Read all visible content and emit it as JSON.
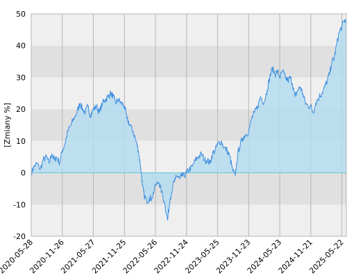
{
  "chart_data": {
    "type": "area",
    "title": "",
    "xlabel": "",
    "ylabel": "[Zmiany %]",
    "ylim": [
      -20,
      50
    ],
    "x_range": [
      "2020-05-28",
      "2025-06-17"
    ],
    "y_ticks": [
      -20,
      -10,
      0,
      10,
      20,
      30,
      40,
      50
    ],
    "y_tick_labels": [
      "-20",
      "-10",
      "0",
      "10",
      "20",
      "30",
      "40",
      "50"
    ],
    "x_ticks": [
      "2020-05-28",
      "2020-11-26",
      "2021-05-27",
      "2021-11-25",
      "2022-05-26",
      "2022-11-24",
      "2023-05-25",
      "2023-11-23",
      "2024-05-23",
      "2024-11-21",
      "2025-05-22"
    ],
    "grid": true,
    "legend": "none",
    "colors": {
      "line": "#3f8fe0",
      "fill": "#b5dcee",
      "band_light": "#efefef",
      "band_dark": "#e0e0e0",
      "grid": "#b4b4b4",
      "zero_line": "#5bc6d6"
    },
    "series": [
      {
        "x": [
          "2020-05-28",
          "2020-06-15",
          "2020-07-01",
          "2020-07-20",
          "2020-08-05",
          "2020-08-25",
          "2020-09-10",
          "2020-09-25",
          "2020-10-10",
          "2020-10-25",
          "2020-11-10",
          "2020-11-26",
          "2020-12-10",
          "2020-12-28",
          "2021-01-15",
          "2021-02-01",
          "2021-02-20",
          "2021-03-10",
          "2021-03-25",
          "2021-04-10",
          "2021-04-25",
          "2021-05-10",
          "2021-05-27",
          "2021-06-15",
          "2021-07-01",
          "2021-07-20",
          "2021-08-05",
          "2021-08-20",
          "2021-09-05",
          "2021-09-20",
          "2021-10-05",
          "2021-10-20",
          "2021-11-05",
          "2021-11-25",
          "2021-12-10",
          "2021-12-28",
          "2022-01-15",
          "2022-02-01",
          "2022-02-15",
          "2022-02-28",
          "2022-03-10",
          "2022-03-20",
          "2022-04-05",
          "2022-04-20",
          "2022-05-05",
          "2022-05-26",
          "2022-06-15",
          "2022-07-01",
          "2022-07-20",
          "2022-08-05",
          "2022-08-20",
          "2022-09-05",
          "2022-09-20",
          "2022-10-05",
          "2022-10-15",
          "2022-10-25",
          "2022-11-10",
          "2022-11-24",
          "2022-12-10",
          "2022-12-28",
          "2023-01-15",
          "2023-02-01",
          "2023-02-20",
          "2023-03-10",
          "2023-03-25",
          "2023-04-10",
          "2023-04-25",
          "2023-05-10",
          "2023-05-25",
          "2023-06-15",
          "2023-07-01",
          "2023-07-20",
          "2023-08-05",
          "2023-08-20",
          "2023-09-05",
          "2023-09-20",
          "2023-10-05",
          "2023-10-20",
          "2023-11-05",
          "2023-11-23",
          "2023-12-10",
          "2023-12-28",
          "2024-01-15",
          "2024-02-01",
          "2024-02-20",
          "2024-03-10",
          "2024-03-25",
          "2024-04-10",
          "2024-04-25",
          "2024-05-10",
          "2024-05-23",
          "2024-06-10",
          "2024-06-25",
          "2024-07-10",
          "2024-07-25",
          "2024-08-05",
          "2024-08-20",
          "2024-09-05",
          "2024-09-20",
          "2024-10-05",
          "2024-10-20",
          "2024-11-05",
          "2024-11-21",
          "2024-12-05",
          "2024-12-20",
          "2025-01-10",
          "2025-01-25",
          "2025-02-10",
          "2025-02-25",
          "2025-03-10",
          "2025-03-25",
          "2025-04-07",
          "2025-04-20",
          "2025-05-05",
          "2025-05-22",
          "2025-06-05",
          "2025-06-17"
        ],
        "y": [
          0,
          2,
          3,
          1,
          4,
          5,
          3,
          6,
          4,
          5,
          3,
          7,
          9,
          13,
          15,
          17,
          19,
          22,
          20,
          19,
          21,
          18,
          20,
          21,
          19,
          22,
          23,
          24,
          25,
          24,
          22,
          23,
          22,
          21,
          17,
          15,
          13,
          10,
          7,
          2,
          -4,
          -7,
          -9,
          -8,
          -8,
          -4,
          -3,
          -6,
          -10,
          -15,
          -8,
          -4,
          -2,
          -1,
          -2,
          -1,
          -1,
          0,
          1,
          2,
          4,
          5,
          6,
          4,
          4,
          3,
          6,
          7,
          9,
          10,
          8,
          7,
          5,
          1,
          -1,
          6,
          9,
          11,
          12,
          13,
          17,
          19,
          21,
          24,
          22,
          26,
          30,
          33,
          31,
          32,
          30,
          32,
          30,
          29,
          30,
          28,
          24,
          26,
          27,
          25,
          22,
          21,
          21,
          19,
          22,
          24,
          25,
          27,
          29,
          31,
          35,
          36,
          40,
          44,
          46,
          48,
          48
        ]
      }
    ]
  }
}
